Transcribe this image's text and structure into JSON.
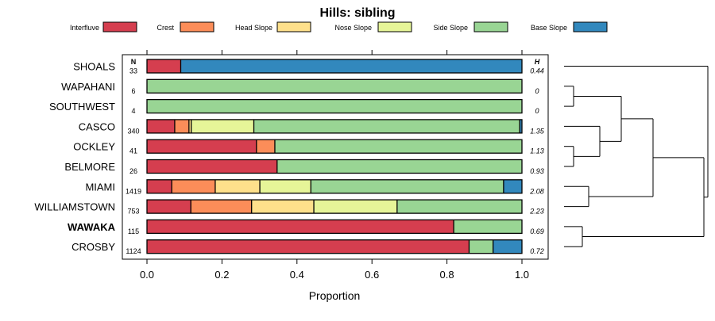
{
  "chart_data": {
    "type": "bar",
    "stacked": true,
    "orientation": "horizontal",
    "title": "Hills: sibling",
    "xlabel": "Proportion",
    "ylabel": "",
    "xlim": [
      0,
      1
    ],
    "xticks": [
      "0.0",
      "0.2",
      "0.4",
      "0.6",
      "0.8",
      "1.0"
    ],
    "n_header": "N",
    "h_header": "H",
    "legend_position": "top",
    "categories": [
      "SHOALS",
      "WAPAHANI",
      "SOUTHWEST",
      "CASCO",
      "OCKLEY",
      "BELMORE",
      "MIAMI",
      "WILLIAMSTOWN",
      "WAWAKA",
      "CROSBY"
    ],
    "highlight": "WAWAKA",
    "n": [
      "33",
      "6",
      "4",
      "340",
      "41",
      "26",
      "1419",
      "753",
      "115",
      "1124"
    ],
    "h": [
      "0.44",
      "0",
      "0",
      "1.35",
      "1.13",
      "0.93",
      "2.08",
      "2.23",
      "0.69",
      "0.72"
    ],
    "series": [
      {
        "name": "Interfluve",
        "color": "#d53e4f",
        "values": [
          0.09,
          0,
          0,
          0.074,
          0.292,
          0.347,
          0.066,
          0.117,
          0.818,
          0.859
        ]
      },
      {
        "name": "Crest",
        "color": "#fc8d59",
        "values": [
          0,
          0,
          0,
          0.038,
          0.049,
          0,
          0.116,
          0.162,
          0,
          0
        ]
      },
      {
        "name": "Head Slope",
        "color": "#fee08b",
        "values": [
          0,
          0,
          0,
          0.006,
          0,
          0,
          0.119,
          0.166,
          0,
          0
        ]
      },
      {
        "name": "Nose Slope",
        "color": "#e6f598",
        "values": [
          0,
          0,
          0,
          0.167,
          0,
          0,
          0.136,
          0.222,
          0,
          0
        ]
      },
      {
        "name": "Side Slope",
        "color": "#99d594",
        "values": [
          0,
          1,
          1,
          0.709,
          0.659,
          0.653,
          0.514,
          0.333,
          0.182,
          0.064
        ]
      },
      {
        "name": "Base Slope",
        "color": "#3288bd",
        "values": [
          0.91,
          0,
          0,
          0.006,
          0,
          0,
          0.049,
          0,
          0,
          0.077
        ]
      }
    ]
  }
}
